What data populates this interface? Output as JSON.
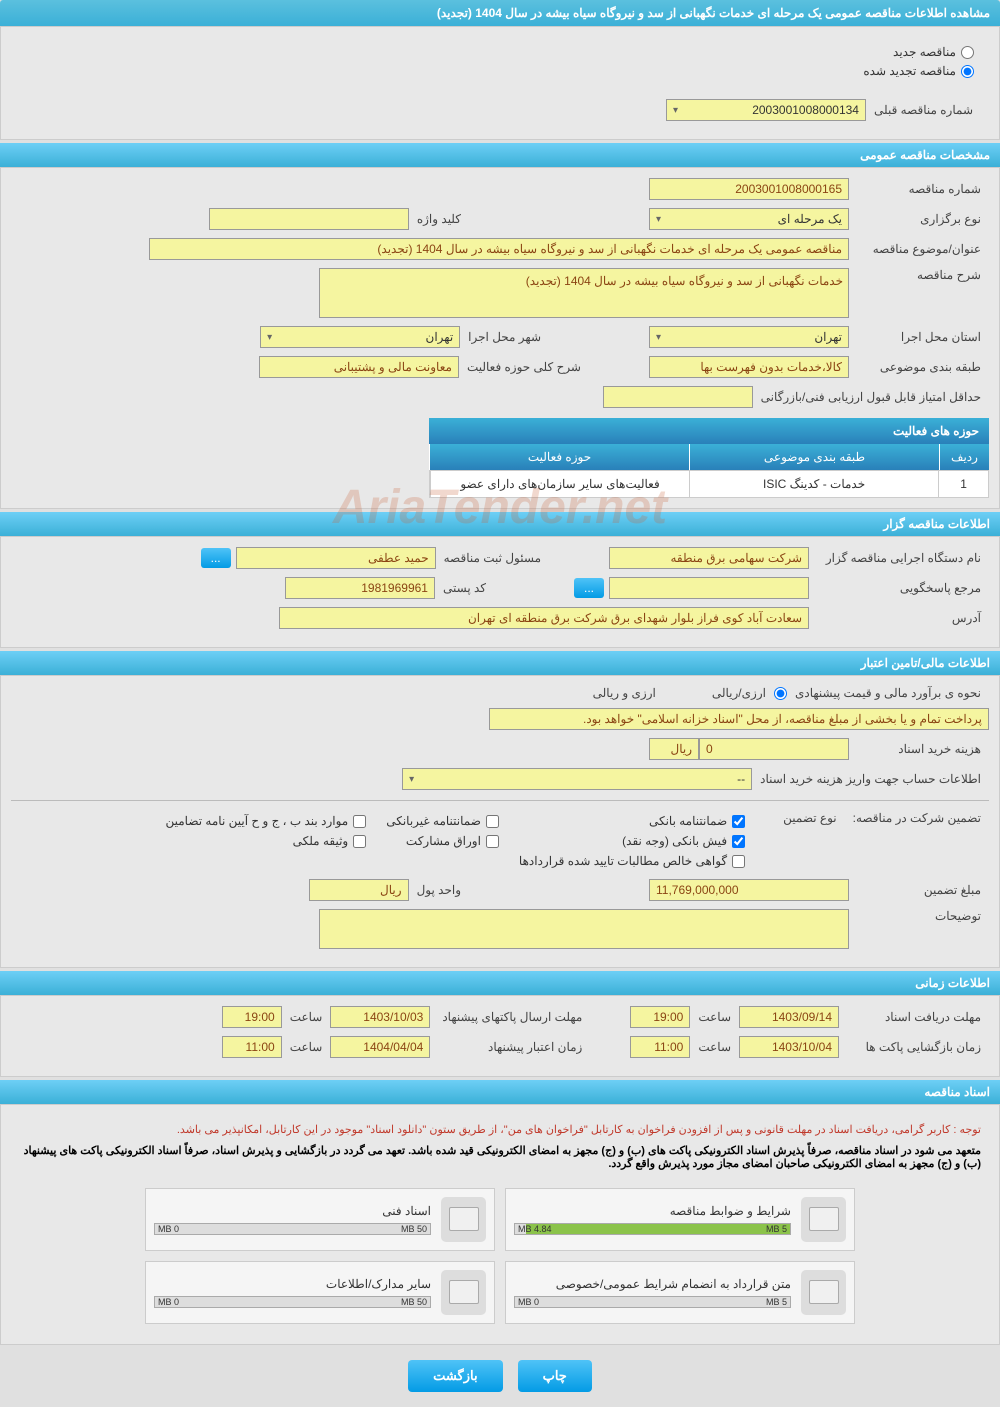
{
  "page_title": "مشاهده اطلاعات مناقصه عمومی یک مرحله ای خدمات نگهبانی از سد و نیروگاه سیاه بیشه در سال 1404 (تجدید)",
  "radio": {
    "new": "مناقصه جدید",
    "renewed": "مناقصه تجدید شده"
  },
  "prev_tender": {
    "label": "شماره مناقصه قبلی",
    "value": "2003001008000134"
  },
  "sections": {
    "general": "مشخصات مناقصه عمومی",
    "organizer": "اطلاعات مناقصه گزار",
    "financial": "اطلاعات مالی/تامین اعتبار",
    "timing": "اطلاعات زمانی",
    "documents": "اسناد مناقصه"
  },
  "general": {
    "tender_no_label": "شماره مناقصه",
    "tender_no": "2003001008000165",
    "type_label": "نوع برگزاری",
    "type": "یک مرحله ای",
    "keyword_label": "کلید واژه",
    "keyword": "",
    "subject_label": "عنوان/موضوع مناقصه",
    "subject": "مناقصه عمومی یک مرحله ای خدمات نگهبانی از سد و نیروگاه سیاه بیشه در سال 1404 (تجدید)",
    "desc_label": "شرح مناقصه",
    "desc": "خدمات نگهبانی از سد و نیروگاه سیاه بیشه در سال 1404 (تجدید)",
    "province_label": "استان محل اجرا",
    "province": "تهران",
    "city_label": "شهر محل اجرا",
    "city": "تهران",
    "category_label": "طبقه بندی موضوعی",
    "category": "کالا،خدمات بدون فهرست بها",
    "activity_desc_label": "شرح کلی حوزه فعالیت",
    "activity_desc": "معاونت مالی و پشتیبانی",
    "min_score_label": "حداقل امتیاز قابل قبول ارزیابی فنی/بازرگانی",
    "activities_header": "حوزه های فعالیت",
    "col_idx": "ردیف",
    "col_cat": "طبقه بندی موضوعی",
    "col_act": "حوزه فعالیت",
    "row_idx": "1",
    "row_cat": "خدمات - کدینگ ISIC",
    "row_act": "فعالیت‌های سایر سازمان‌های دارای عضو"
  },
  "organizer": {
    "org_label": "نام دستگاه اجرایی مناقصه گزار",
    "org": "شرکت سهامی برق منطقه",
    "reg_officer_label": "مسئول ثبت مناقصه",
    "reg_officer": "حمید عطفی",
    "responder_label": "مرجع پاسخگویی",
    "responder": "",
    "postal_label": "کد پستی",
    "postal": "1981969961",
    "address_label": "آدرس",
    "address": "سعادت آباد کوی فراز بلوار شهدای برق شرکت برق منطقه ای تهران",
    "more": "..."
  },
  "financial": {
    "estimate_label": "نحوه ی برآورد مالی و قیمت پیشنهادی",
    "currency_opt1": "ارزی/ریالی",
    "currency_opt2": "ارزی و ریالی",
    "treasury_note": "پرداخت تمام و یا بخشی از مبلغ مناقصه، از محل \"اسناد خزانه اسلامی\" خواهد بود.",
    "doc_cost_label": "هزینه خرید اسناد",
    "doc_cost": "0",
    "rial": "ریال",
    "account_label": "اطلاعات حساب جهت واریز هزینه خرید اسناد",
    "account": "--",
    "guarantee_label": "تضمین شرکت در مناقصه:",
    "guarantee_type_label": "نوع تضمین",
    "chk_bank": "ضمانتنامه بانکی",
    "chk_nonbank": "ضمانتنامه غیربانکی",
    "chk_cases": "موارد بند ب ، ج و ح آیین نامه تضامین",
    "chk_cash": "فیش بانکی (وجه نقد)",
    "chk_bonds": "اوراق مشارکت",
    "chk_property": "وثیقه ملکی",
    "chk_cert": "گواهی خالص مطالبات تایید شده قراردادها",
    "amount_label": "مبلغ تضمین",
    "amount": "11,769,000,000",
    "unit_label": "واحد پول",
    "unit": "ریال",
    "notes_label": "توضیحات"
  },
  "timing": {
    "receive_label": "مهلت دریافت اسناد",
    "receive_date": "1403/09/14",
    "time_label": "ساعت",
    "receive_time": "19:00",
    "submit_label": "مهلت ارسال پاکتهای پیشنهاد",
    "submit_date": "1403/10/03",
    "submit_time": "19:00",
    "open_label": "زمان بازگشایی پاکت ها",
    "open_date": "1403/10/04",
    "open_time": "11:00",
    "validity_label": "زمان اعتبار پیشنهاد",
    "validity_date": "1404/04/04",
    "validity_time": "11:00"
  },
  "documents": {
    "note1": "توجه : کاربر گرامی، دریافت اسناد در مهلت قانونی و پس از افزودن فراخوان به کارتابل \"فراخوان های من\"، از طریق ستون \"دانلود اسناد\" موجود در این کارتابل، امکانپذیر می باشد.",
    "note2": "متعهد می شود در اسناد مناقصه، صرفاً پذیرش اسناد الکترونیکی پاکت های (ب) و (ج) مجهز به امضای الکترونیکی قید شده باشد. تعهد می گردد در بازگشایی و پذیرش اسناد، صرفاً اسناد الکترونیکی پاکت های پیشنهاد (ب) و (ج) مجهز به امضای الکترونیکی صاحبان امضای مجاز مورد پذیرش واقع گردد.",
    "file1_name": "شرایط و ضوابط مناقصه",
    "file1_used": "4.84 MB",
    "file1_total": "5 MB",
    "file1_pct": 96,
    "file2_name": "اسناد فنی",
    "file2_used": "0 MB",
    "file2_total": "50 MB",
    "file2_pct": 0,
    "file3_name": "متن قرارداد به انضمام شرایط عمومی/خصوصی",
    "file3_used": "0 MB",
    "file3_total": "5 MB",
    "file3_pct": 0,
    "file4_name": "سایر مدارک/اطلاعات",
    "file4_used": "0 MB",
    "file4_total": "50 MB",
    "file4_pct": 0
  },
  "buttons": {
    "print": "چاپ",
    "back": "بازگشت"
  },
  "watermark": "AriaTender.net",
  "colors": {
    "header_bg": "#3bb0d7",
    "field_bg": "#f5f5a0",
    "field_text": "#8b4513",
    "progress_fill": "#8bc34a"
  }
}
